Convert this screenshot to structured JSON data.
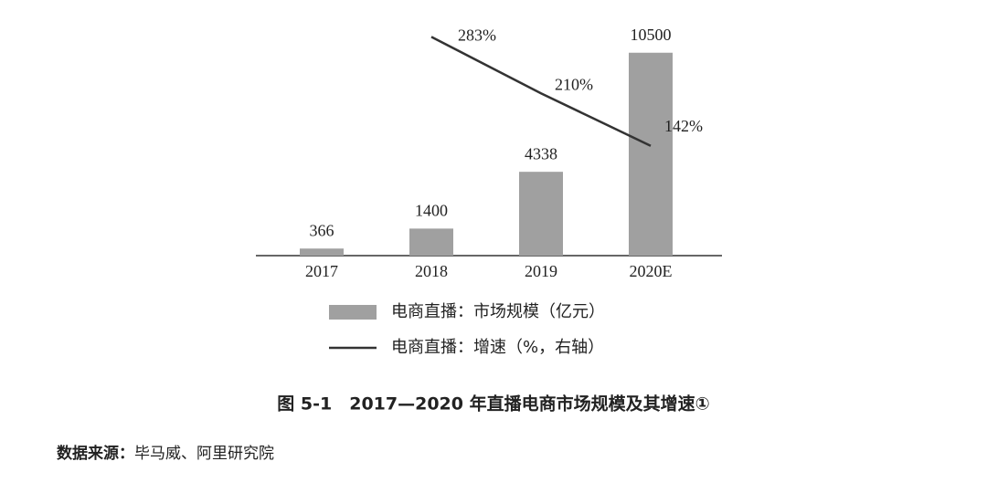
{
  "chart_data": {
    "type": "bar_line",
    "title": "图 5-1　2017—2020 年直播电商市场规模及其增速①",
    "source_label": "数据来源：",
    "source_text": "毕马威、阿里研究院",
    "categories": [
      "2017",
      "2018",
      "2019",
      "2020E"
    ],
    "series": [
      {
        "name": "电商直播：市场规模（亿元）",
        "type": "bar",
        "color": "#a0a0a0",
        "values": [
          366,
          1400,
          4338,
          10500
        ]
      },
      {
        "name": "电商直播：增速（%，右轴）",
        "type": "line",
        "color": "#333333",
        "axis": "y2",
        "values": [
          null,
          283,
          210,
          142
        ],
        "value_labels": [
          null,
          "283%",
          "210%",
          "142%"
        ]
      }
    ],
    "ylim": [
      0,
      12000
    ],
    "y2lim": [
      0,
      300
    ]
  }
}
